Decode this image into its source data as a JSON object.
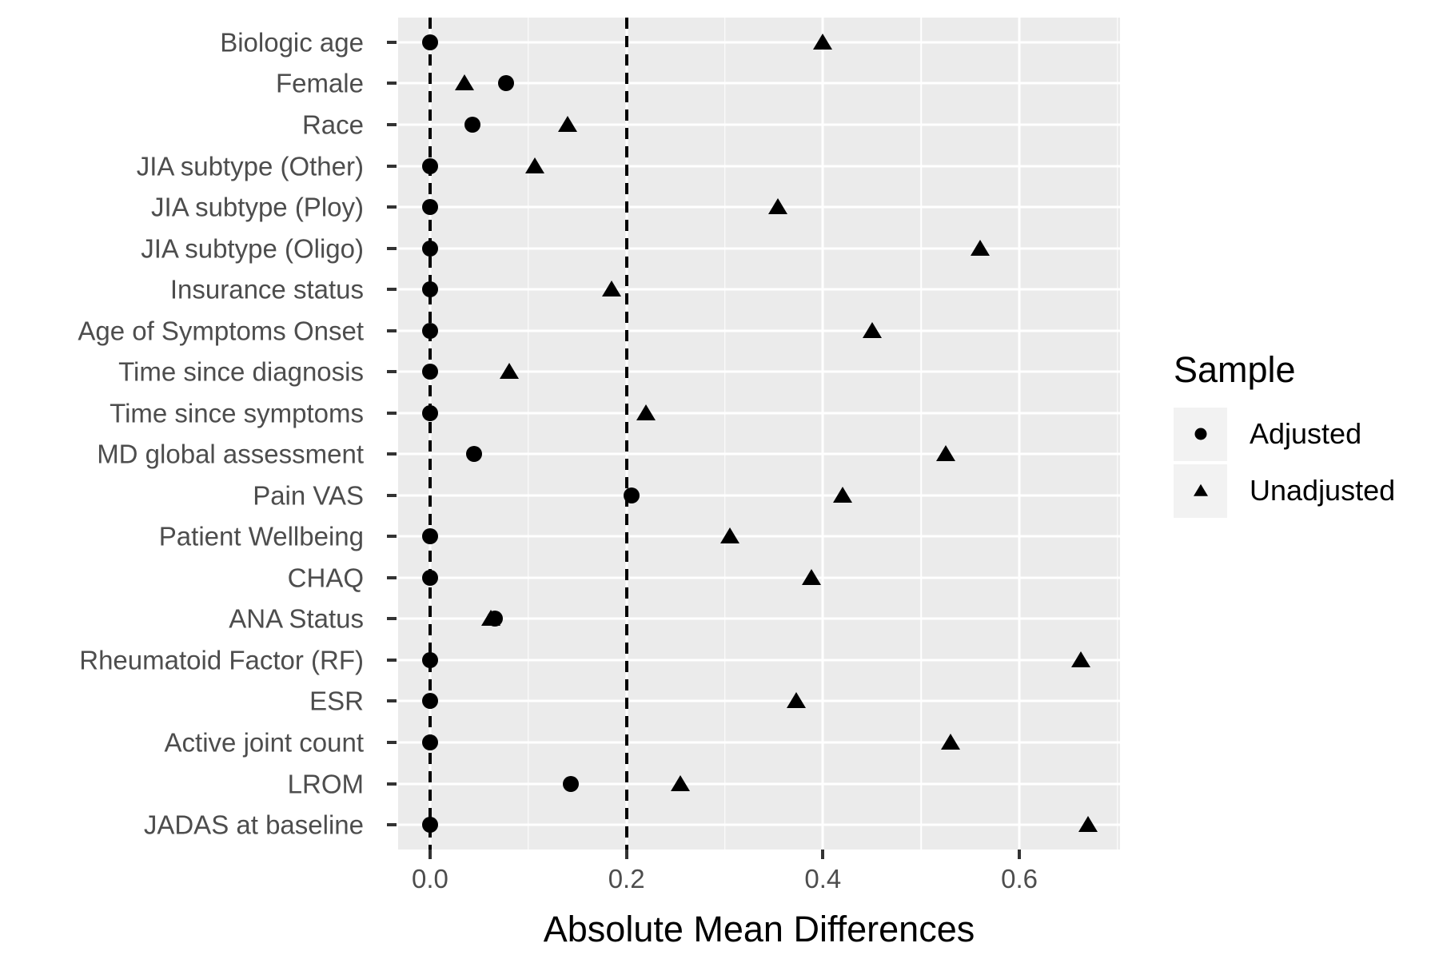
{
  "chart_data": {
    "type": "scatter",
    "title": "",
    "xlabel": "Absolute Mean Differences",
    "ylabel": "",
    "xlim": [
      -0.0325,
      0.7025
    ],
    "x_ticks": [
      0.0,
      0.2,
      0.4,
      0.6
    ],
    "x_tick_labels": [
      "0.0",
      "0.2",
      "0.4",
      "0.6"
    ],
    "x_minor_gridlines": [
      0.1,
      0.3,
      0.5,
      0.7
    ],
    "reference_lines_dashed": [
      0.0,
      0.2
    ],
    "grid": "major-white-on-grey",
    "legend_position": "right",
    "categories": [
      "Biologic age",
      "Female",
      "Race",
      "JIA subtype (Other)",
      "JIA subtype (Ploy)",
      "JIA subtype (Oligo)",
      "Insurance status",
      "Age of Symptoms Onset",
      "Time since diagnosis",
      "Time since symptoms",
      "MD global assessment",
      "Pain VAS",
      "Patient Wellbeing",
      "CHAQ",
      "ANA Status",
      "Rheumatoid Factor (RF)",
      "ESR",
      "Active joint count",
      "LROM",
      "JADAS at baseline"
    ],
    "series": [
      {
        "name": "Unadjusted",
        "marker": "triangle",
        "values": [
          0.4,
          0.035,
          0.14,
          0.107,
          0.354,
          0.56,
          0.185,
          0.45,
          0.081,
          0.22,
          0.525,
          0.42,
          0.305,
          0.388,
          0.062,
          0.663,
          0.373,
          0.53,
          0.255,
          0.67
        ]
      },
      {
        "name": "Adjusted",
        "marker": "circle",
        "values": [
          0.0,
          0.077,
          0.043,
          0.0,
          0.0,
          0.0,
          0.0,
          0.0,
          0.0,
          0.0,
          0.045,
          0.205,
          0.0,
          0.0,
          0.066,
          0.0,
          0.0,
          0.0,
          0.143,
          0.0
        ]
      }
    ],
    "legend": {
      "title": "Sample",
      "entries": [
        {
          "label": "Adjusted",
          "marker": "circle"
        },
        {
          "label": "Unadjusted",
          "marker": "triangle"
        }
      ]
    }
  },
  "colors": {
    "panel_bg": "#EBEBEB",
    "gridline": "#FFFFFF",
    "marker": "#000000",
    "axis_text": "#4D4D4D",
    "tick_mark": "#333333",
    "legend_key_bg": "#F2F2F2",
    "reference_line": "#000000",
    "background": "#FFFFFF"
  }
}
